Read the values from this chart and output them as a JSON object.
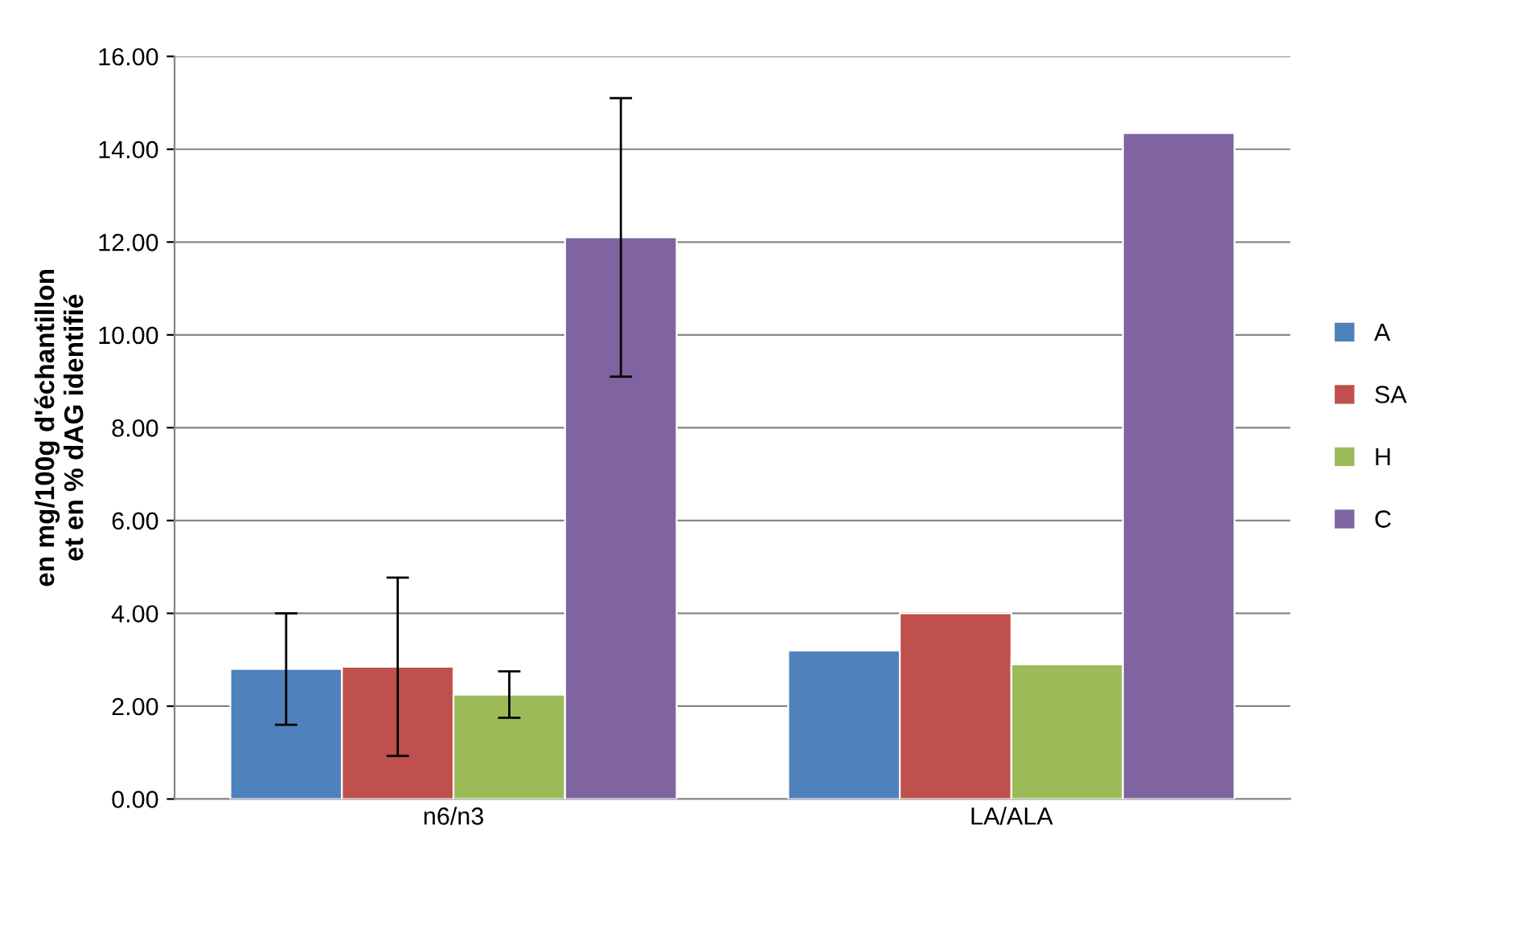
{
  "chart_data": {
    "type": "bar",
    "ylabel": "en mg/100g d'échantillon\net en % dAG identifié",
    "categories": [
      "n6/n3",
      "LA/ALA"
    ],
    "series": [
      {
        "name": "A",
        "color": "#4f81bd",
        "values": [
          2.8,
          3.2
        ],
        "errors": [
          1.2,
          null
        ]
      },
      {
        "name": "SA",
        "color": "#c0504d",
        "values": [
          2.85,
          4.0
        ],
        "errors": [
          1.92,
          null
        ]
      },
      {
        "name": "H",
        "color": "#9bbb59",
        "values": [
          2.25,
          2.9
        ],
        "errors": [
          0.5,
          null
        ]
      },
      {
        "name": "C",
        "color": "#8064a2",
        "values": [
          12.1,
          14.35
        ],
        "errors": [
          3.0,
          null
        ]
      }
    ],
    "ylim": [
      0,
      16
    ],
    "yticks": [
      {
        "value": 0,
        "label": "0.00"
      },
      {
        "value": 2,
        "label": "2.00"
      },
      {
        "value": 4,
        "label": "4.00"
      },
      {
        "value": 6,
        "label": "6.00"
      },
      {
        "value": 8,
        "label": "8.00"
      },
      {
        "value": 10,
        "label": "10.00"
      },
      {
        "value": 12,
        "label": "12.00"
      },
      {
        "value": 14,
        "label": "14.00"
      },
      {
        "value": 16,
        "label": "16.00"
      }
    ],
    "grid": "y",
    "legend": "right"
  }
}
